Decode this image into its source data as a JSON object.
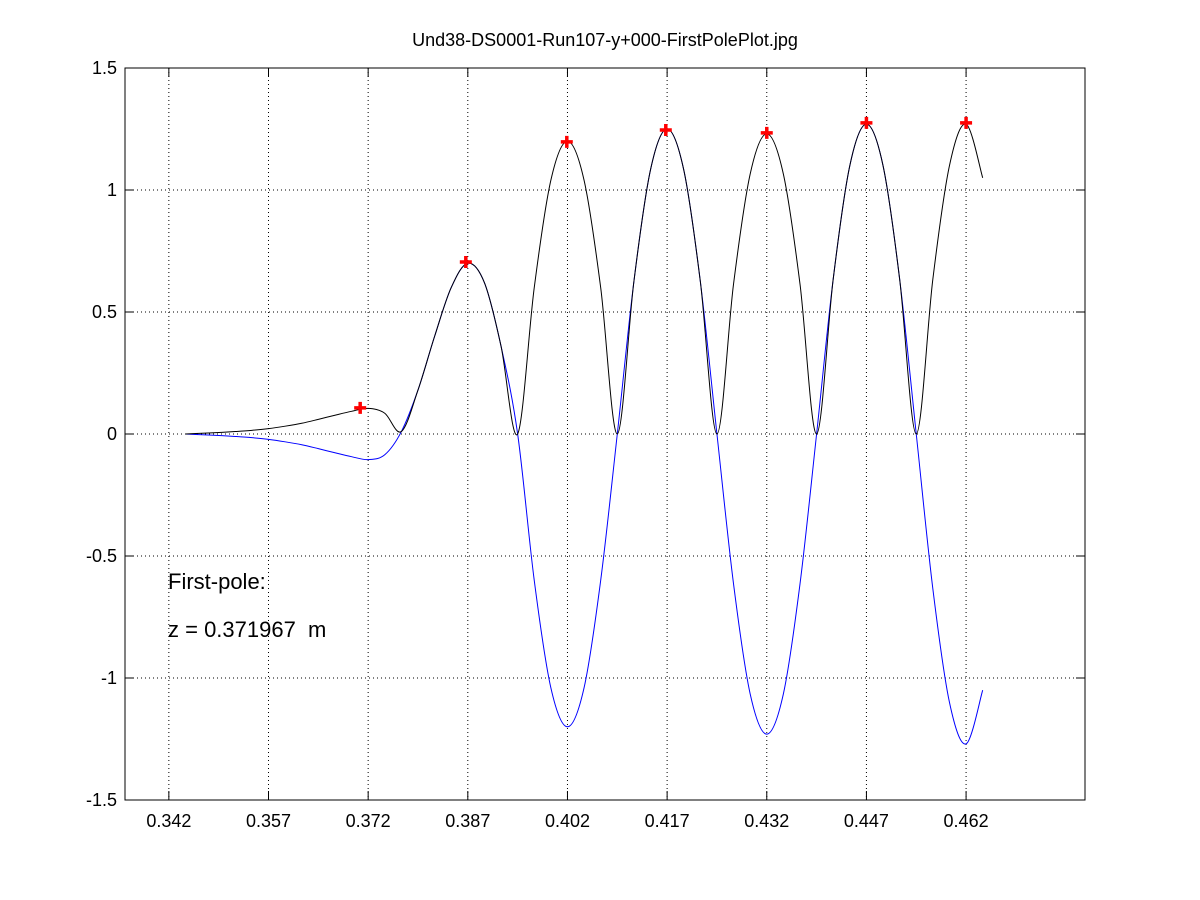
{
  "chart_data": {
    "type": "line",
    "title": "Und38-DS0001-Run107-y+000-FirstPolePlot.jpg",
    "x": [
      0.3445,
      0.347,
      0.3495,
      0.352,
      0.3545,
      0.357,
      0.3595,
      0.362,
      0.3645,
      0.367,
      0.3695,
      0.372,
      0.3745,
      0.377,
      0.3795,
      0.382,
      0.3845,
      0.387,
      0.3895,
      0.392,
      0.3945,
      0.397,
      0.3995,
      0.402,
      0.4045,
      0.407,
      0.4095,
      0.412,
      0.4145,
      0.417,
      0.4195,
      0.422,
      0.4245,
      0.427,
      0.4295,
      0.432,
      0.4345,
      0.437,
      0.4395,
      0.442,
      0.4445,
      0.447,
      0.4495,
      0.452,
      0.4545,
      0.457,
      0.4595,
      0.462,
      0.4645
    ],
    "series": [
      {
        "color": "#0000ff",
        "values": [
          0,
          -0.003,
          -0.006,
          -0.01,
          -0.015,
          -0.022,
          -0.032,
          -0.044,
          -0.06,
          -0.077,
          -0.093,
          -0.105,
          -0.085,
          0.01,
          0.18,
          0.4,
          0.6,
          0.7,
          0.62,
          0.36,
          0,
          -0.6,
          -1.04,
          -1.2,
          -1.04,
          -0.6,
          0,
          0.625,
          1.083,
          1.25,
          1.083,
          0.625,
          0,
          -0.615,
          -1.065,
          -1.23,
          -1.065,
          -0.615,
          0,
          0.635,
          1.1,
          1.27,
          1.1,
          0.635,
          0,
          -0.635,
          -1.1,
          -1.27,
          -1.05
        ]
      },
      {
        "color": "#000000",
        "values": [
          0,
          0.003,
          0.006,
          0.01,
          0.015,
          0.022,
          0.032,
          0.044,
          0.06,
          0.077,
          0.093,
          0.105,
          0.085,
          0.01,
          0.18,
          0.4,
          0.6,
          0.7,
          0.62,
          0.36,
          0,
          0.6,
          1.04,
          1.2,
          1.04,
          0.6,
          0,
          0.625,
          1.083,
          1.25,
          1.083,
          0.625,
          0,
          0.615,
          1.065,
          1.23,
          1.065,
          0.615,
          0,
          0.635,
          1.1,
          1.27,
          1.1,
          0.635,
          0,
          0.635,
          1.1,
          1.27,
          1.05
        ]
      }
    ],
    "markers": {
      "color": "#ff0000",
      "x": [
        0.3708,
        0.3867,
        0.4019,
        0.4168,
        0.432,
        0.447,
        0.462
      ],
      "values": [
        0.107,
        0.705,
        1.197,
        1.246,
        1.234,
        1.275,
        1.275
      ]
    },
    "annotations": [
      "First-pole:",
      "z = 0.371967  m"
    ],
    "xlim": [
      0.3354,
      0.4799
    ],
    "ylim": [
      -1.5,
      1.5
    ],
    "xticks": [
      0.342,
      0.357,
      0.372,
      0.387,
      0.402,
      0.417,
      0.432,
      0.447,
      0.462
    ],
    "yticks": [
      -1.5,
      -1,
      -0.5,
      0,
      0.5,
      1,
      1.5
    ],
    "grid": true
  }
}
